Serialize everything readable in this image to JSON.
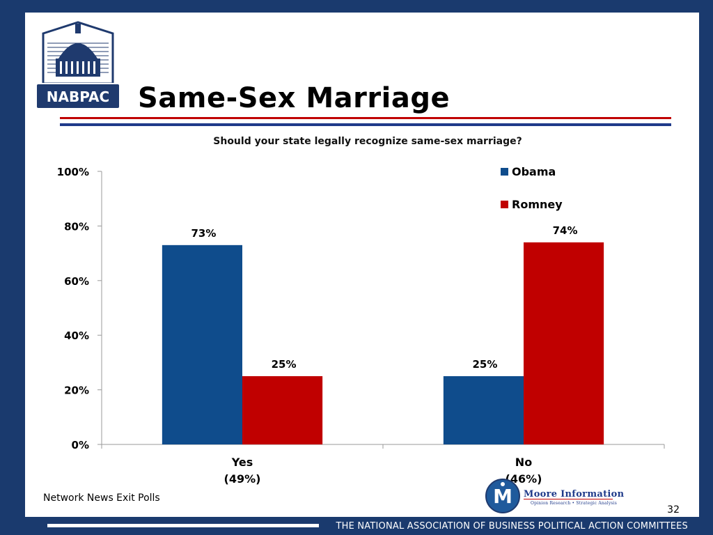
{
  "slide": {
    "title": "Same-Sex Marriage",
    "question": "Should your state legally recognize same-sex marriage?",
    "source": "Network News Exit Polls",
    "page_number": "32",
    "footer": "THE NATIONAL ASSOCIATION OF BUSINESS POLITICAL ACTION COMMITTEES",
    "logo_text": "NABPAC",
    "moore_logo_title": "Moore Information",
    "moore_logo_subtitle": "Opinion Research • Strategic Analysis"
  },
  "colors": {
    "obama": "#0f4c8c",
    "romney": "#c00000",
    "frame": "#1a3a6e"
  },
  "chart_data": {
    "type": "bar",
    "categories": [
      "Yes",
      "No"
    ],
    "category_sublabels": [
      "(49%)",
      "(46%)"
    ],
    "series": [
      {
        "name": "Obama",
        "values": [
          73,
          25
        ],
        "labels": [
          "73%",
          "25%"
        ]
      },
      {
        "name": "Romney",
        "values": [
          25,
          74
        ],
        "labels": [
          "25%",
          "74%"
        ]
      }
    ],
    "title": "Should your state legally recognize same-sex marriage?",
    "xlabel": "",
    "ylabel": "",
    "ylim": [
      0,
      100
    ],
    "yticks": [
      "0%",
      "20%",
      "40%",
      "60%",
      "80%",
      "100%"
    ],
    "grid": false,
    "legend": "top-right"
  }
}
